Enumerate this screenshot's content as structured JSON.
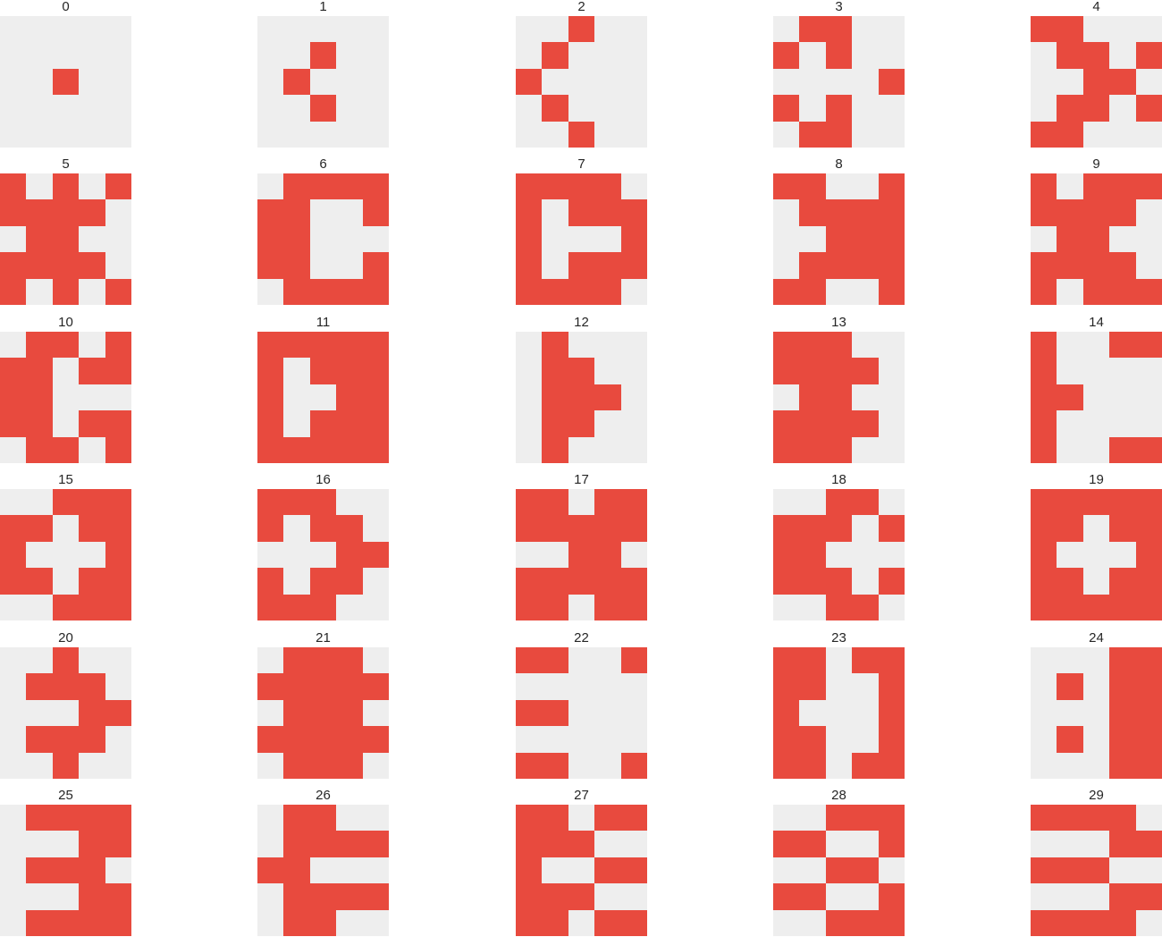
{
  "colors": {
    "on": "#E84A3E",
    "off": "#EEEEEE",
    "title_text": "#262626"
  },
  "patterns": [
    {
      "label": "0",
      "grid": [
        "00000",
        "00000",
        "00100",
        "00000",
        "00000"
      ]
    },
    {
      "label": "1",
      "grid": [
        "00000",
        "00100",
        "01000",
        "00100",
        "00000"
      ]
    },
    {
      "label": "2",
      "grid": [
        "00100",
        "01000",
        "10000",
        "01000",
        "00100"
      ]
    },
    {
      "label": "3",
      "grid": [
        "01100",
        "10100",
        "00001",
        "10100",
        "01100"
      ]
    },
    {
      "label": "4",
      "grid": [
        "11000",
        "01101",
        "00110",
        "01101",
        "11000"
      ]
    },
    {
      "label": "5",
      "grid": [
        "10101",
        "11110",
        "01100",
        "11110",
        "10101"
      ]
    },
    {
      "label": "6",
      "grid": [
        "01111",
        "11001",
        "11000",
        "11001",
        "01111"
      ]
    },
    {
      "label": "7",
      "grid": [
        "11110",
        "10111",
        "10001",
        "10111",
        "11110"
      ]
    },
    {
      "label": "8",
      "grid": [
        "11001",
        "01111",
        "00111",
        "01111",
        "11001"
      ]
    },
    {
      "label": "9",
      "grid": [
        "10111",
        "11110",
        "01100",
        "11110",
        "10111"
      ]
    },
    {
      "label": "10",
      "grid": [
        "01101",
        "11011",
        "11000",
        "11011",
        "01101"
      ]
    },
    {
      "label": "11",
      "grid": [
        "11111",
        "10111",
        "10011",
        "10111",
        "11111"
      ]
    },
    {
      "label": "12",
      "grid": [
        "01000",
        "01100",
        "01110",
        "01100",
        "01000"
      ]
    },
    {
      "label": "13",
      "grid": [
        "11100",
        "11110",
        "01100",
        "11110",
        "11100"
      ]
    },
    {
      "label": "14",
      "grid": [
        "10011",
        "10000",
        "11000",
        "10000",
        "10011"
      ]
    },
    {
      "label": "15",
      "grid": [
        "00111",
        "11011",
        "10001",
        "11011",
        "00111"
      ]
    },
    {
      "label": "16",
      "grid": [
        "11100",
        "10110",
        "00011",
        "10110",
        "11100"
      ]
    },
    {
      "label": "17",
      "grid": [
        "11011",
        "11111",
        "00110",
        "11111",
        "11011"
      ]
    },
    {
      "label": "18",
      "grid": [
        "00110",
        "11101",
        "11000",
        "11101",
        "00110"
      ]
    },
    {
      "label": "19",
      "grid": [
        "11111",
        "11011",
        "10001",
        "11011",
        "11111"
      ]
    },
    {
      "label": "20",
      "grid": [
        "00100",
        "01110",
        "00011",
        "01110",
        "00100"
      ]
    },
    {
      "label": "21",
      "grid": [
        "01110",
        "11111",
        "01110",
        "11111",
        "01110"
      ]
    },
    {
      "label": "22",
      "grid": [
        "11001",
        "00000",
        "11000",
        "00000",
        "11001"
      ]
    },
    {
      "label": "23",
      "grid": [
        "11011",
        "11001",
        "10001",
        "11001",
        "11011"
      ]
    },
    {
      "label": "24",
      "grid": [
        "00011",
        "01011",
        "00011",
        "01011",
        "00011"
      ]
    },
    {
      "label": "25",
      "grid": [
        "01111",
        "00011",
        "01110",
        "00011",
        "01111"
      ]
    },
    {
      "label": "26",
      "grid": [
        "01100",
        "01111",
        "11000",
        "01111",
        "01100"
      ]
    },
    {
      "label": "27",
      "grid": [
        "11011",
        "11100",
        "10011",
        "11100",
        "11011"
      ]
    },
    {
      "label": "28",
      "grid": [
        "00111",
        "11001",
        "00110",
        "11001",
        "00111"
      ]
    },
    {
      "label": "29",
      "grid": [
        "11110",
        "00011",
        "11100",
        "00011",
        "11110"
      ]
    }
  ]
}
